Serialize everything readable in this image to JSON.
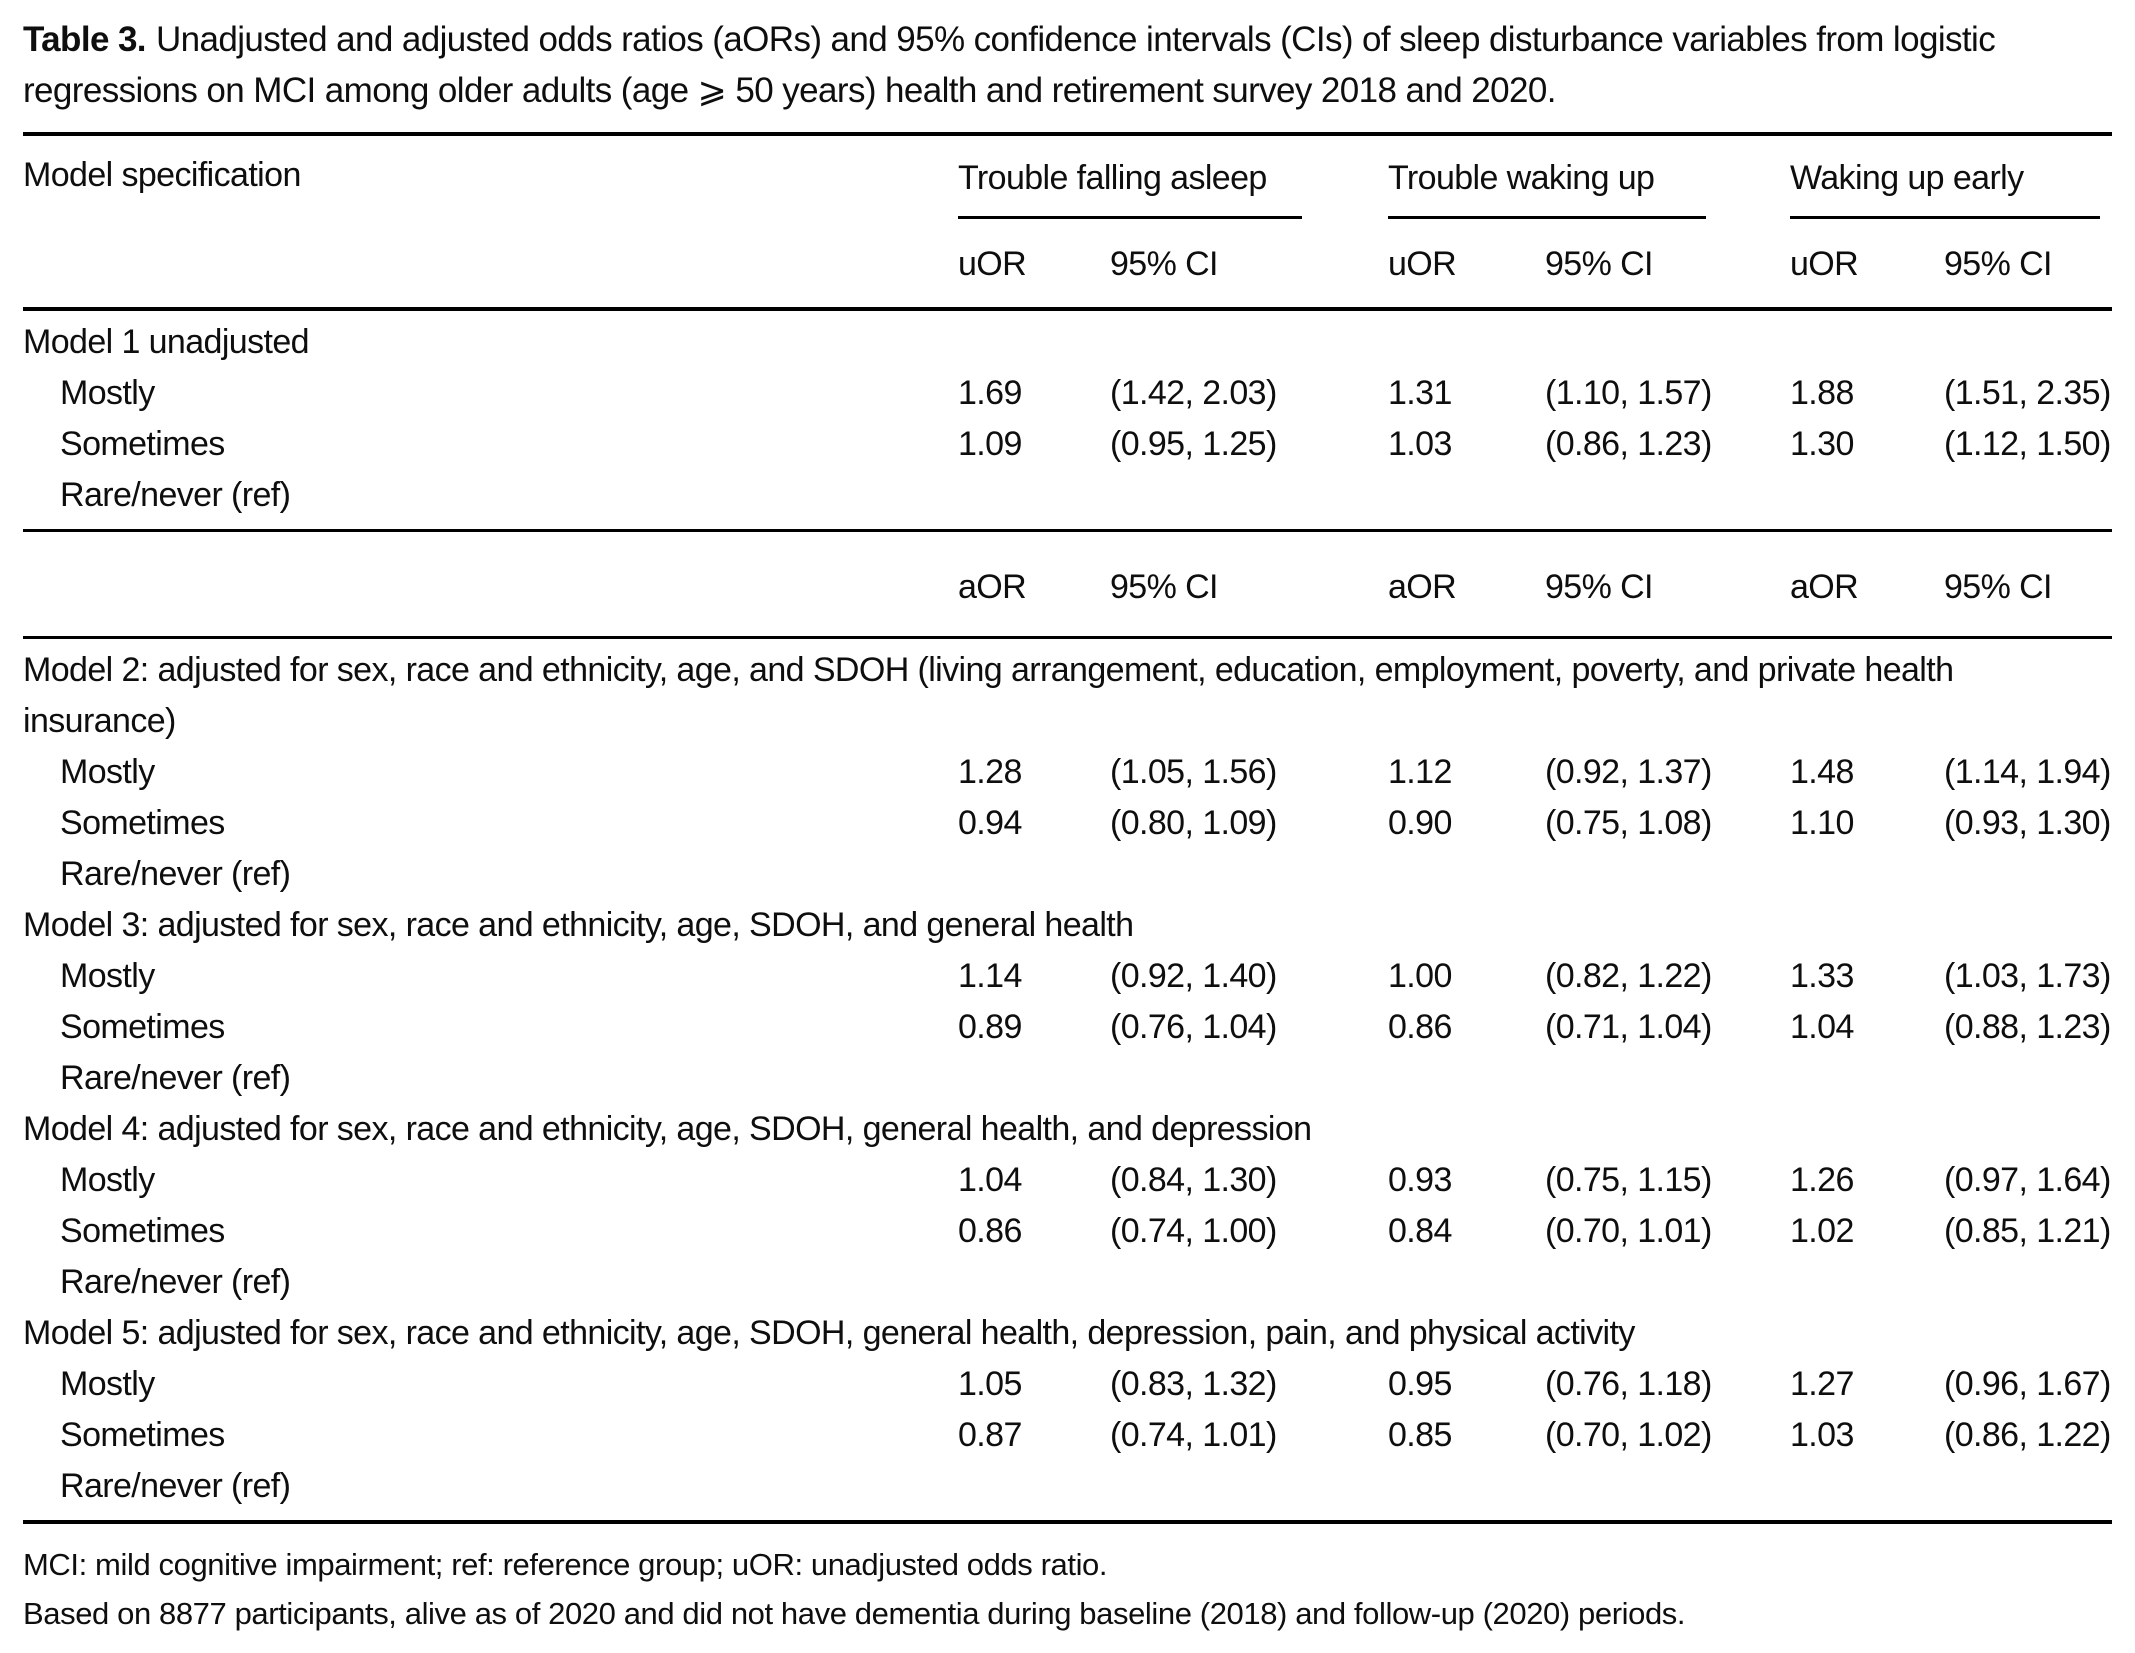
{
  "title": {
    "label": "Table 3.",
    "text": "Unadjusted and adjusted odds ratios (aORs) and 95% confidence intervals (CIs) of sleep disturbance variables from logistic regressions on MCI among older adults (age ⩾ 50 years) health and retirement survey 2018 and 2020."
  },
  "table": {
    "column1_header": "Model specification",
    "groups": [
      "Trouble falling asleep",
      "Trouble waking up",
      "Waking up early"
    ],
    "unadjusted_subheaders": [
      "uOR",
      "95% CI"
    ],
    "adjusted_subheaders": [
      "aOR",
      "95% CI"
    ],
    "sections": [
      {
        "header": "Model 1 unadjusted",
        "rows": [
          {
            "label": "Mostly",
            "values": [
              "1.69",
              "(1.42, 2.03)",
              "1.31",
              "(1.10, 1.57)",
              "1.88",
              "(1.51, 2.35)"
            ]
          },
          {
            "label": "Sometimes",
            "values": [
              "1.09",
              "(0.95, 1.25)",
              "1.03",
              "(0.86, 1.23)",
              "1.30",
              "(1.12, 1.50)"
            ]
          },
          {
            "label": "Rare/never (ref)",
            "values": []
          }
        ]
      },
      {
        "header": "Model 2: adjusted for sex, race and ethnicity, age, and SDOH (living arrangement, education, employment, poverty, and private health insurance)",
        "rows": [
          {
            "label": "Mostly",
            "values": [
              "1.28",
              "(1.05, 1.56)",
              "1.12",
              "(0.92, 1.37)",
              "1.48",
              "(1.14, 1.94)"
            ]
          },
          {
            "label": "Sometimes",
            "values": [
              "0.94",
              "(0.80, 1.09)",
              "0.90",
              "(0.75, 1.08)",
              "1.10",
              "(0.93, 1.30)"
            ]
          },
          {
            "label": "Rare/never (ref)",
            "values": []
          }
        ]
      },
      {
        "header": "Model 3: adjusted for sex, race and ethnicity, age, SDOH, and general health",
        "rows": [
          {
            "label": "Mostly",
            "values": [
              "1.14",
              "(0.92, 1.40)",
              "1.00",
              "(0.82, 1.22)",
              "1.33",
              "(1.03, 1.73)"
            ]
          },
          {
            "label": "Sometimes",
            "values": [
              "0.89",
              "(0.76, 1.04)",
              "0.86",
              "(0.71, 1.04)",
              "1.04",
              "(0.88, 1.23)"
            ]
          },
          {
            "label": "Rare/never (ref)",
            "values": []
          }
        ]
      },
      {
        "header": "Model 4: adjusted for sex, race and ethnicity, age, SDOH, general health, and depression",
        "rows": [
          {
            "label": "Mostly",
            "values": [
              "1.04",
              "(0.84, 1.30)",
              "0.93",
              "(0.75, 1.15)",
              "1.26",
              "(0.97, 1.64)"
            ]
          },
          {
            "label": "Sometimes",
            "values": [
              "0.86",
              "(0.74, 1.00)",
              "0.84",
              "(0.70, 1.01)",
              "1.02",
              "(0.85, 1.21)"
            ]
          },
          {
            "label": "Rare/never (ref)",
            "values": []
          }
        ]
      },
      {
        "header": "Model 5: adjusted for sex, race and ethnicity, age, SDOH, general health, depression, pain, and physical activity",
        "rows": [
          {
            "label": "Mostly",
            "values": [
              "1.05",
              "(0.83, 1.32)",
              "0.95",
              "(0.76, 1.18)",
              "1.27",
              "(0.96, 1.67)"
            ]
          },
          {
            "label": "Sometimes",
            "values": [
              "0.87",
              "(0.74, 1.01)",
              "0.85",
              "(0.70, 1.02)",
              "1.03",
              "(0.86, 1.22)"
            ]
          },
          {
            "label": "Rare/never (ref)",
            "values": []
          }
        ]
      }
    ]
  },
  "footnotes": [
    "MCI: mild cognitive impairment; ref: reference group; uOR: unadjusted odds ratio.",
    "Based on 8877 participants, alive as of 2020 and did not have dementia during baseline (2018) and follow-up (2020) periods."
  ]
}
